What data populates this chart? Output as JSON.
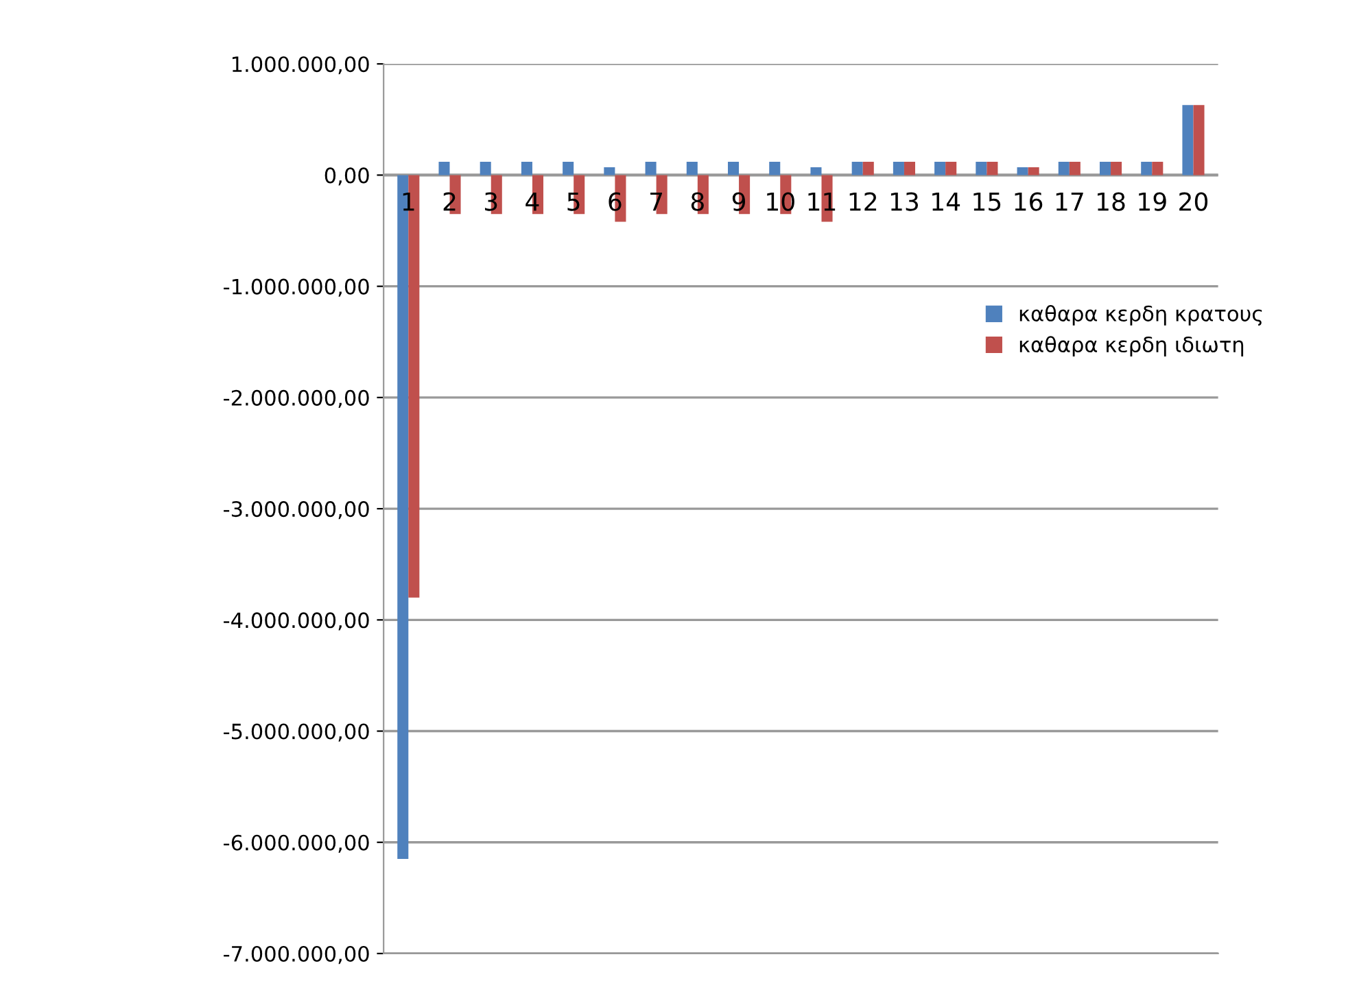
{
  "chart_data": {
    "type": "bar",
    "categories": [
      "1",
      "2",
      "3",
      "4",
      "5",
      "6",
      "7",
      "8",
      "9",
      "10",
      "11",
      "12",
      "13",
      "14",
      "15",
      "16",
      "17",
      "18",
      "19",
      "20"
    ],
    "series": [
      {
        "name": "καθαρα κερδη κρατους",
        "color": "#4f81bd",
        "values": [
          -6150000,
          120000,
          120000,
          120000,
          120000,
          70000,
          120000,
          120000,
          120000,
          120000,
          70000,
          120000,
          120000,
          120000,
          120000,
          70000,
          120000,
          120000,
          120000,
          630000
        ]
      },
      {
        "name": "καθαρα κερδη ιδιωτη",
        "color": "#c0504d",
        "values": [
          -3800000,
          -350000,
          -350000,
          -350000,
          -350000,
          -420000,
          -350000,
          -350000,
          -350000,
          -350000,
          -420000,
          120000,
          120000,
          120000,
          120000,
          70000,
          120000,
          120000,
          120000,
          630000
        ]
      }
    ],
    "ylim": [
      -7000000,
      1000000
    ],
    "yticks": [
      {
        "value": 1000000,
        "label": "1.000.000,00"
      },
      {
        "value": 0,
        "label": "0,00"
      },
      {
        "value": -1000000,
        "label": "-1.000.000,00"
      },
      {
        "value": -2000000,
        "label": "-2.000.000,00"
      },
      {
        "value": -3000000,
        "label": "-3.000.000,00"
      },
      {
        "value": -4000000,
        "label": "-4.000.000,00"
      },
      {
        "value": -5000000,
        "label": "-5.000.000,00"
      },
      {
        "value": -6000000,
        "label": "-6.000.000,00"
      },
      {
        "value": -7000000,
        "label": "-7.000.000,00"
      }
    ],
    "grid": "y",
    "legend": "right"
  }
}
